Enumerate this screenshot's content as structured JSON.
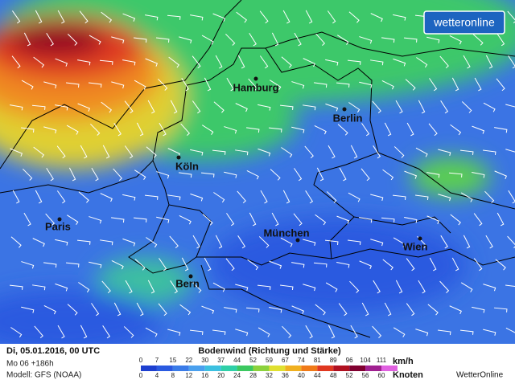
{
  "logo": "wetteronline",
  "cities": [
    {
      "name": "Hamburg"
    },
    {
      "name": "Berlin"
    },
    {
      "name": "Köln"
    },
    {
      "name": "Paris"
    },
    {
      "name": "München"
    },
    {
      "name": "Wien"
    },
    {
      "name": "Bern"
    }
  ],
  "footer": {
    "date": "Di, 05.01.2016, 00 UTC",
    "run": "Mo 06 +186h",
    "model": "Modell: GFS (NOAA)",
    "legend_title": "Bodenwind (Richtung und Stärke)",
    "kmh_label": "km/h",
    "knots_label": "Knoten",
    "kmh": [
      0,
      7,
      15,
      22,
      30,
      37,
      44,
      52,
      59,
      67,
      74,
      81,
      89,
      96,
      104,
      111
    ],
    "knots": [
      0,
      4,
      8,
      12,
      16,
      20,
      24,
      28,
      32,
      36,
      40,
      44,
      48,
      52,
      56,
      60
    ],
    "colors": [
      "#1d3fd0",
      "#2a5ae0",
      "#3a7be8",
      "#4aa0ee",
      "#3cc0e0",
      "#2fd0a8",
      "#3cc860",
      "#8cd23c",
      "#e0e030",
      "#f0b020",
      "#f07a18",
      "#e03820",
      "#b01020",
      "#800030",
      "#a02090",
      "#e060e0"
    ],
    "brand": "WetterOnline"
  }
}
